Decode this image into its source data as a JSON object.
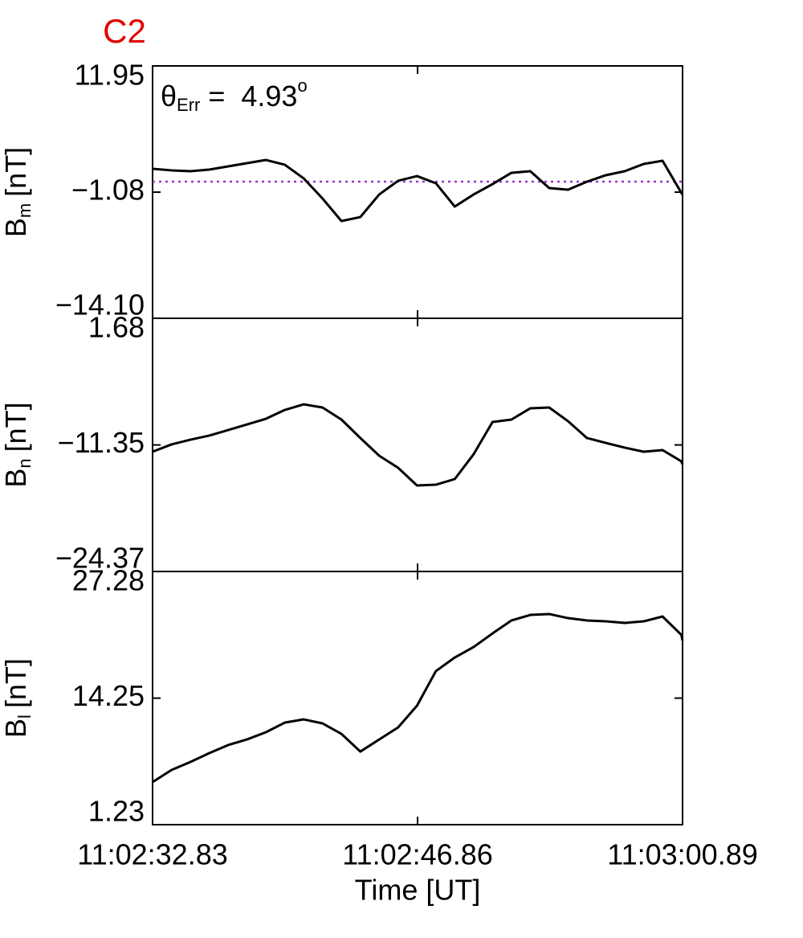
{
  "chart_data": [
    {
      "type": "line",
      "title": "C2",
      "ylabel": {
        "base": "B",
        "sub": "m",
        "unit": "[nT]"
      },
      "annotation": {
        "base": "θ",
        "sub": "Err",
        "text": "=  4.93",
        "sup": "o"
      },
      "hline": {
        "value": 0,
        "color": "#9933cc",
        "style": "dotted"
      },
      "xlim": [
        39752.83,
        39780.89
      ],
      "ylim": [
        -14.1,
        11.95
      ],
      "yticks": [
        11.95,
        {
          "value": -1.08,
          "label": "−1.08"
        },
        {
          "value": -14.1,
          "label": "−14.10"
        }
      ],
      "x": [
        39752.83,
        39753.83,
        39754.83,
        39755.83,
        39756.83,
        39757.83,
        39758.83,
        39759.83,
        39760.83,
        39761.83,
        39762.83,
        39763.83,
        39764.83,
        39765.83,
        39766.83,
        39767.83,
        39768.83,
        39769.83,
        39770.83,
        39771.83,
        39772.83,
        39773.83,
        39774.83,
        39775.83,
        39776.83,
        39777.83,
        39778.83,
        39779.83,
        39780.83,
        39780.89
      ],
      "series": [
        {
          "color": "#000000",
          "values": [
            1.33,
            1.17,
            1.08,
            1.25,
            1.58,
            1.91,
            2.24,
            1.75,
            0.34,
            -1.74,
            -4.06,
            -3.65,
            -1.32,
            0.09,
            0.58,
            -0.16,
            -2.57,
            -1.32,
            -0.25,
            0.92,
            1.08,
            -0.66,
            -0.83,
            0.0,
            0.67,
            1.08,
            1.83,
            2.16,
            -1.16,
            -1.32
          ]
        }
      ]
    },
    {
      "type": "line",
      "ylabel": {
        "base": "B",
        "sub": "n",
        "unit": "[nT]"
      },
      "xlim": [
        39752.83,
        39780.89
      ],
      "ylim": [
        -24.37,
        1.68
      ],
      "yticks": [
        1.68,
        {
          "value": -11.35,
          "label": "−11.35"
        },
        {
          "value": -24.37,
          "label": "−24.37"
        }
      ],
      "x": [
        39752.83,
        39753.83,
        39754.83,
        39755.83,
        39756.83,
        39757.83,
        39758.83,
        39759.83,
        39760.83,
        39761.83,
        39762.83,
        39763.83,
        39764.83,
        39765.83,
        39766.83,
        39767.83,
        39768.83,
        39769.83,
        39770.83,
        39771.83,
        39772.83,
        39773.83,
        39774.83,
        39775.83,
        39776.83,
        39777.83,
        39778.83,
        39779.83,
        39780.83,
        39780.89
      ],
      "series": [
        {
          "color": "#000000",
          "values": [
            -12.05,
            -11.3,
            -10.81,
            -10.39,
            -9.82,
            -9.24,
            -8.66,
            -7.75,
            -7.17,
            -7.5,
            -8.74,
            -10.64,
            -12.46,
            -13.7,
            -15.52,
            -15.44,
            -14.86,
            -12.3,
            -8.99,
            -8.74,
            -7.58,
            -7.5,
            -8.91,
            -10.64,
            -11.14,
            -11.63,
            -12.05,
            -11.88,
            -13.04,
            -13.37
          ]
        }
      ]
    },
    {
      "type": "line",
      "ylabel": {
        "base": "B",
        "sub": "l",
        "unit": "[nT]"
      },
      "xlabel": "Time [UT]",
      "xlim": [
        39752.83,
        39780.89
      ],
      "xticks": [
        {
          "value": 39752.83,
          "label": "11:02:32.83"
        },
        {
          "value": 39766.86,
          "label": "11:02:46.86"
        },
        {
          "value": 39780.89,
          "label": "11:03:00.89"
        }
      ],
      "ylim": [
        1.23,
        27.28
      ],
      "yticks": [
        27.28,
        14.25,
        1.23
      ],
      "x": [
        39752.83,
        39753.83,
        39754.83,
        39755.83,
        39756.83,
        39757.83,
        39758.83,
        39759.83,
        39760.83,
        39761.83,
        39762.83,
        39763.83,
        39764.83,
        39765.83,
        39766.83,
        39767.83,
        39768.83,
        39769.83,
        39770.83,
        39771.83,
        39772.83,
        39773.83,
        39774.83,
        39775.83,
        39776.83,
        39777.83,
        39778.83,
        39779.83,
        39780.83,
        39780.89
      ],
      "series": [
        {
          "color": "#000000",
          "values": [
            5.61,
            6.85,
            7.68,
            8.59,
            9.42,
            10.0,
            10.74,
            11.73,
            12.06,
            11.65,
            10.57,
            8.75,
            10.0,
            11.24,
            13.47,
            17.03,
            18.43,
            19.51,
            20.91,
            22.24,
            22.81,
            22.9,
            22.48,
            22.24,
            22.15,
            21.99,
            22.15,
            22.65,
            20.75,
            20.17
          ]
        }
      ]
    }
  ]
}
